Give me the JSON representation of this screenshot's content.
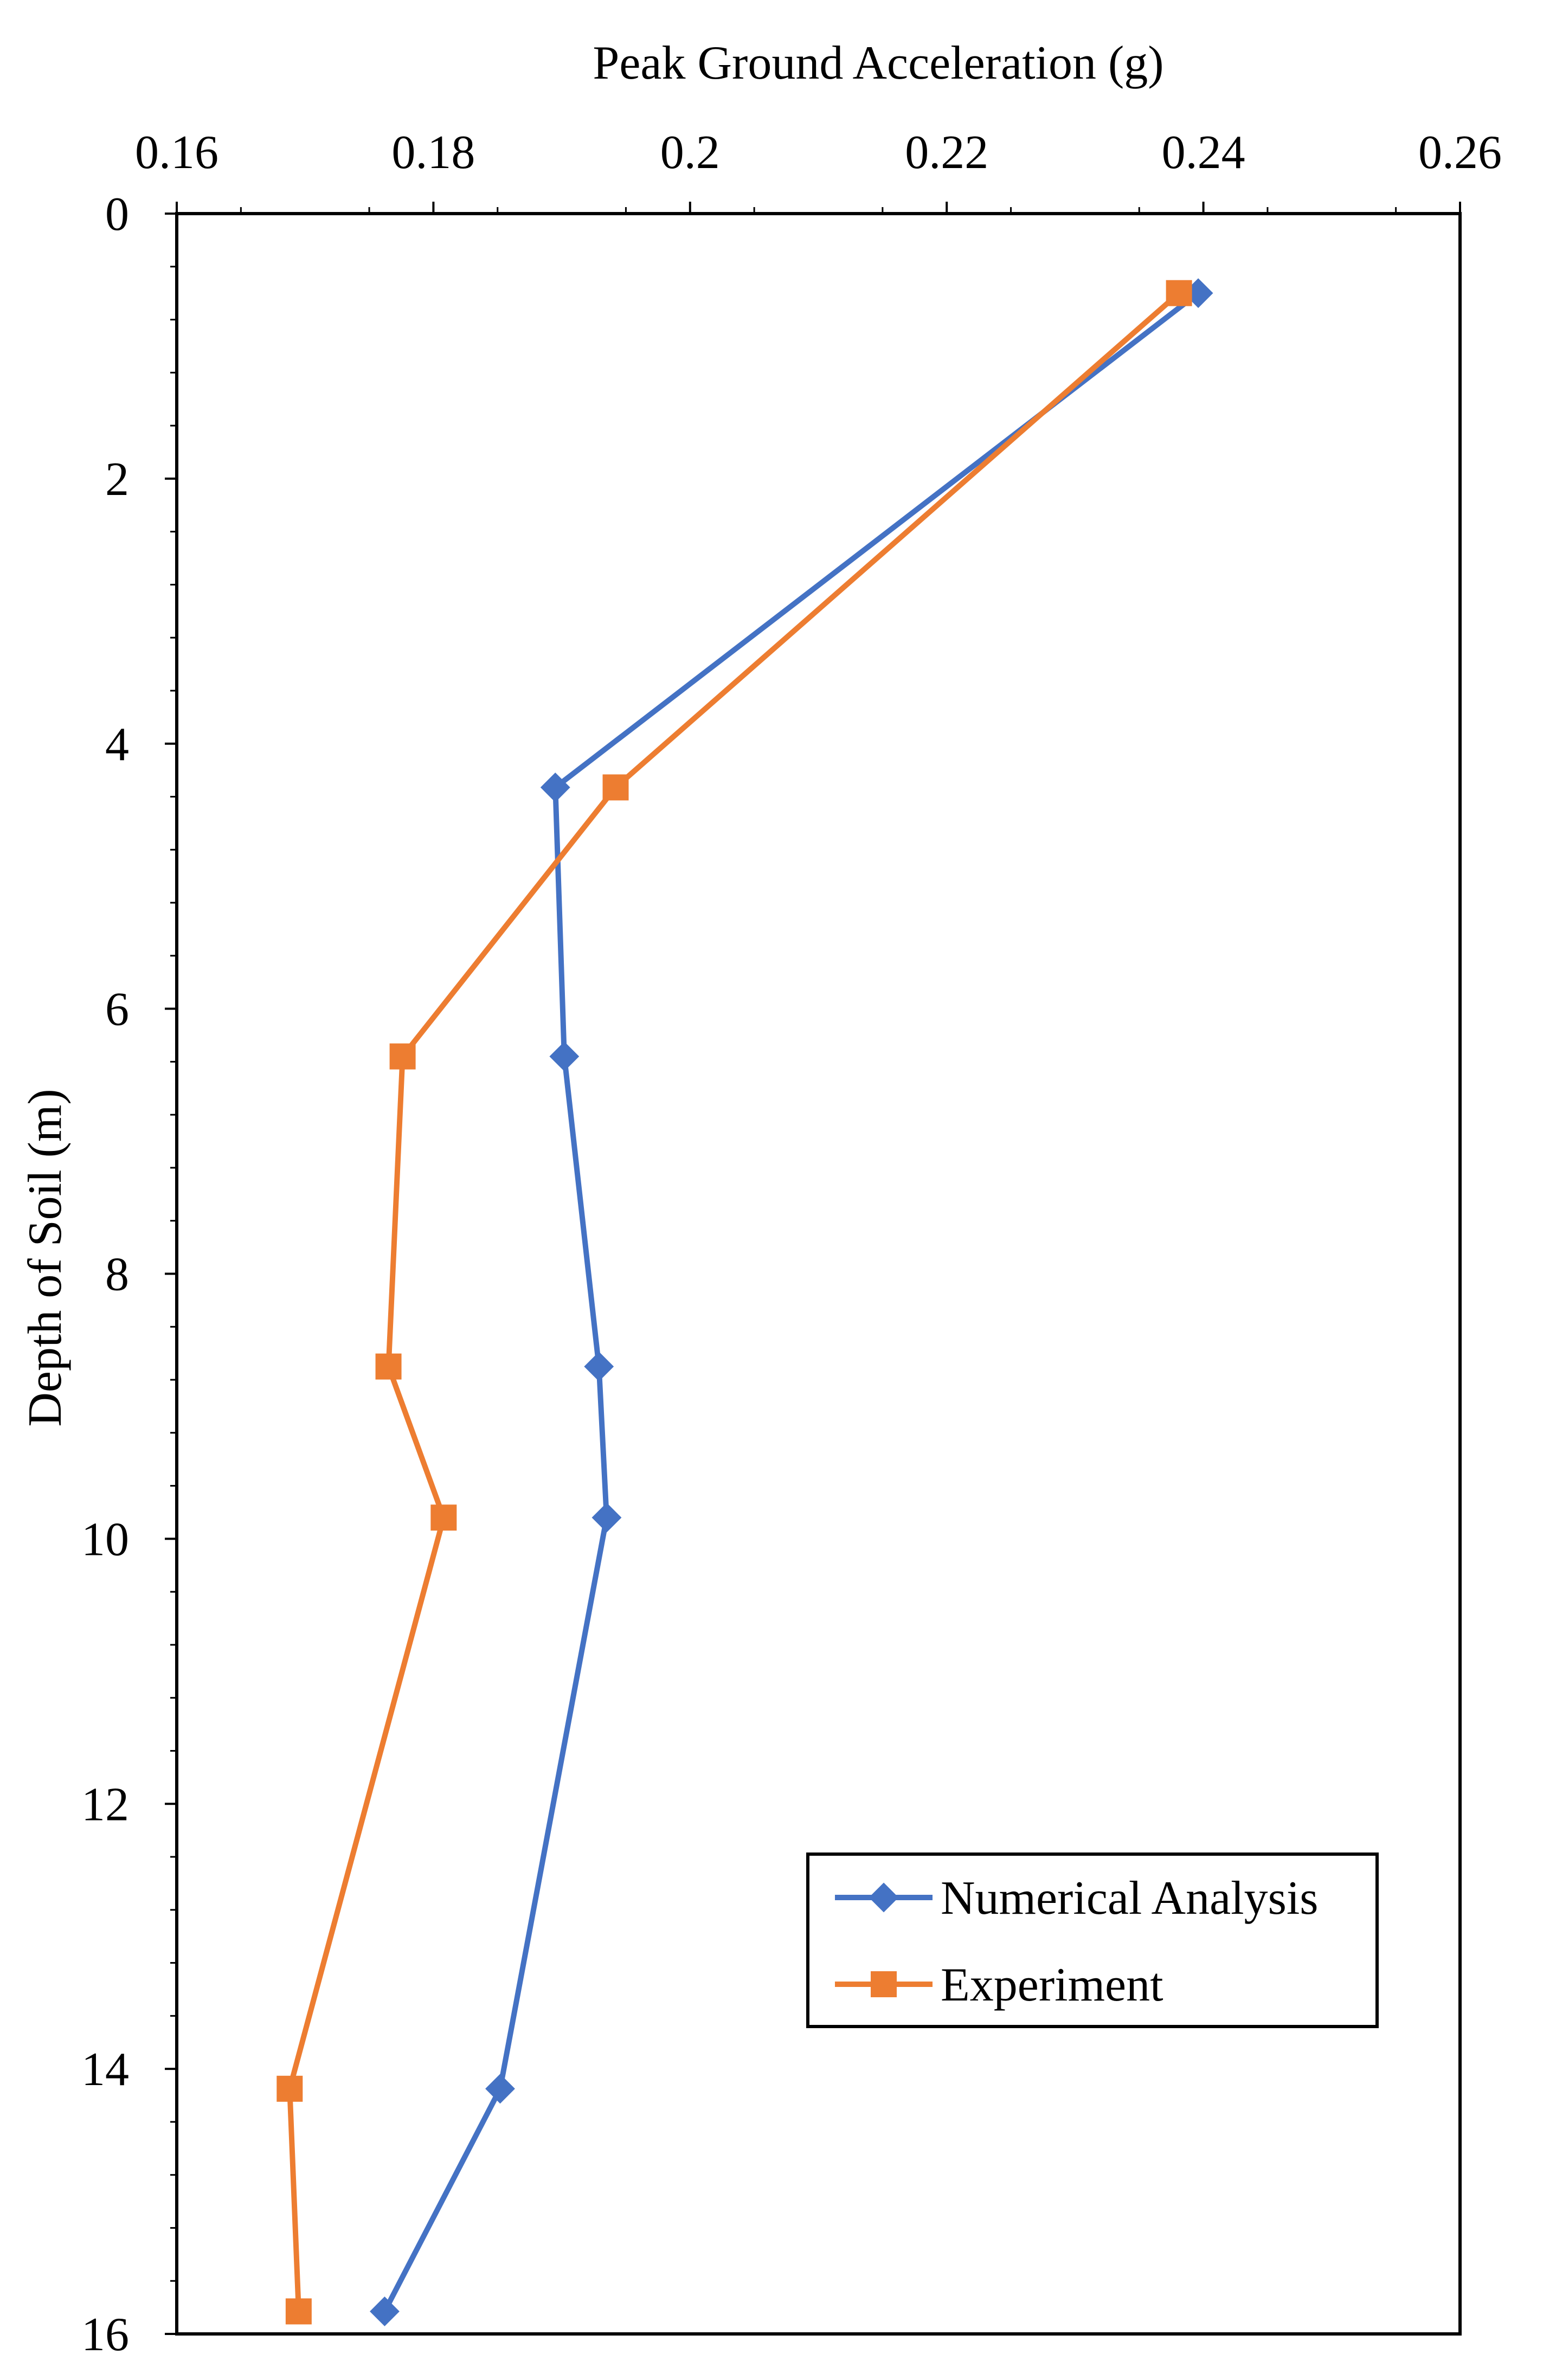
{
  "chart_data": {
    "type": "line",
    "title": "",
    "xlabel": "Peak Ground Acceleration (g)",
    "ylabel": "Depth of Soil (m)",
    "x_axis_position": "top",
    "y_axis_reversed": true,
    "xlim": [
      0.16,
      0.26
    ],
    "ylim": [
      0,
      16
    ],
    "x_ticks": [
      "0.16",
      "0.18",
      "0.2",
      "0.22",
      "0.24",
      "0.26"
    ],
    "y_ticks": [
      "0",
      "2",
      "4",
      "6",
      "8",
      "10",
      "12",
      "14",
      "16"
    ],
    "grid": false,
    "legend_position": "lower-right",
    "series": [
      {
        "name": "Numerical Analysis",
        "marker": "diamond",
        "color": "#4472C4",
        "points": [
          {
            "x": 0.2396,
            "y": 0.6
          },
          {
            "x": 0.1895,
            "y": 4.33
          },
          {
            "x": 0.1902,
            "y": 6.36
          },
          {
            "x": 0.1929,
            "y": 8.7
          },
          {
            "x": 0.1935,
            "y": 9.84
          },
          {
            "x": 0.1852,
            "y": 14.15
          },
          {
            "x": 0.1762,
            "y": 15.83
          }
        ]
      },
      {
        "name": "Experiment",
        "marker": "square",
        "color": "#ED7D31",
        "points": [
          {
            "x": 0.2381,
            "y": 0.6
          },
          {
            "x": 0.1942,
            "y": 4.33
          },
          {
            "x": 0.1776,
            "y": 6.36
          },
          {
            "x": 0.1765,
            "y": 8.7
          },
          {
            "x": 0.1808,
            "y": 9.84
          },
          {
            "x": 0.1688,
            "y": 14.15
          },
          {
            "x": 0.1695,
            "y": 15.83
          }
        ]
      }
    ]
  }
}
